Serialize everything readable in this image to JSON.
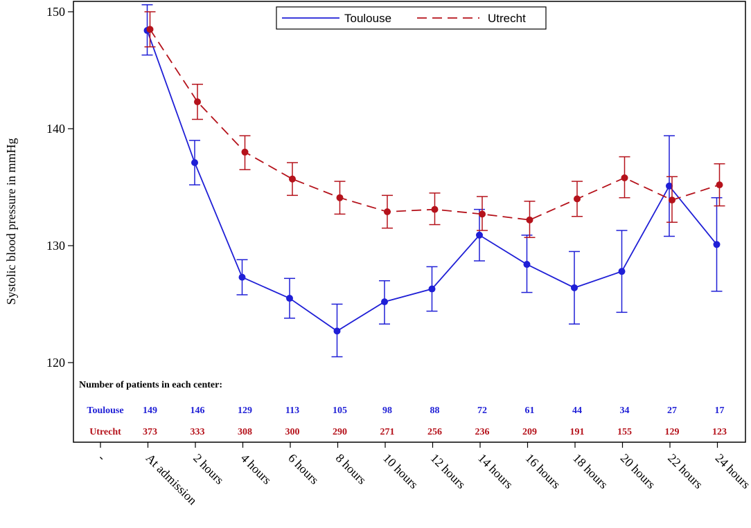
{
  "chart_data": {
    "type": "line",
    "title": "",
    "xlabel": "",
    "ylabel": "Systolic blood pressure in mmHg",
    "ylim": [
      113,
      151
    ],
    "yticks": [
      120,
      130,
      140,
      150
    ],
    "categories": [
      "-",
      "At admission",
      "2 hours",
      "4 hours",
      "6 hours",
      "8 hours",
      "10 hours",
      "12 hours",
      "14 hours",
      "16 hours",
      "18 hours",
      "20 hours",
      "22 hours",
      "24 hours"
    ],
    "legend_position": "top-center",
    "series": [
      {
        "name": "Toulouse",
        "color": "#1f1fd6",
        "line_style": "solid",
        "values": [
          null,
          148.4,
          137.1,
          127.3,
          125.5,
          122.7,
          125.2,
          126.3,
          130.9,
          128.4,
          126.4,
          127.8,
          135.1,
          130.1
        ],
        "lower": [
          null,
          146.3,
          135.2,
          125.8,
          123.8,
          120.5,
          123.3,
          124.4,
          128.7,
          126.0,
          123.3,
          124.3,
          130.8,
          126.1
        ],
        "upper": [
          null,
          150.6,
          139.0,
          128.8,
          127.2,
          125.0,
          127.0,
          128.2,
          133.1,
          130.9,
          129.5,
          131.3,
          139.4,
          134.1
        ]
      },
      {
        "name": "Utrecht",
        "color": "#b5121b",
        "line_style": "dashed",
        "values": [
          null,
          148.5,
          142.3,
          138.0,
          135.7,
          134.1,
          132.9,
          133.1,
          132.7,
          132.2,
          134.0,
          135.8,
          133.9,
          135.2
        ],
        "lower": [
          null,
          147.0,
          140.8,
          136.5,
          134.3,
          132.7,
          131.5,
          131.8,
          131.3,
          130.7,
          132.5,
          134.1,
          132.0,
          133.4
        ],
        "upper": [
          null,
          150.0,
          143.8,
          139.4,
          137.1,
          135.5,
          134.3,
          134.5,
          134.2,
          133.8,
          135.5,
          137.6,
          135.9,
          137.0
        ]
      }
    ],
    "patients_table": {
      "heading": "Number of patients in each center:",
      "rows": [
        {
          "label": "Toulouse",
          "color": "#1f1fd6",
          "counts": [
            "149",
            "146",
            "129",
            "113",
            "105",
            "98",
            "88",
            "72",
            "61",
            "44",
            "34",
            "27",
            "17"
          ]
        },
        {
          "label": "Utrecht",
          "color": "#b5121b",
          "counts": [
            "373",
            "333",
            "308",
            "300",
            "290",
            "271",
            "256",
            "236",
            "209",
            "191",
            "155",
            "129",
            "123"
          ]
        }
      ]
    }
  }
}
